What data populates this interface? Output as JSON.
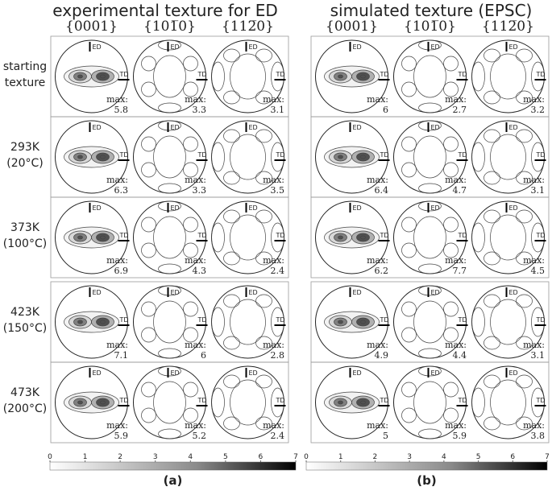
{
  "header": {
    "left_title": "experimental texture for ED",
    "right_title": "simulated texture (EPSC)"
  },
  "columns": [
    "{0001}",
    "{101̅0}",
    "{112̅0}"
  ],
  "rows": [
    [
      "starting",
      "texture"
    ],
    [
      "293K",
      "(20°C)"
    ],
    [
      "373K",
      "(100°C)"
    ],
    [
      "423K",
      "(150°C)"
    ],
    [
      "473K",
      "(200°C)"
    ]
  ],
  "markers": {
    "ed": "ED",
    "td": "TD",
    "max": "max:"
  },
  "experimental": [
    [
      5.8,
      3.3,
      3.1
    ],
    [
      6.3,
      3.3,
      3.5
    ],
    [
      6.9,
      4.3,
      2.4
    ],
    [
      7.1,
      6,
      2.8
    ],
    [
      5.9,
      5.2,
      2.4
    ]
  ],
  "simulated": [
    [
      6,
      2.7,
      3.2
    ],
    [
      6.4,
      4.7,
      3.1
    ],
    [
      6.2,
      7.7,
      4.5
    ],
    [
      4.9,
      4.4,
      3.1
    ],
    [
      5,
      5.9,
      3.8
    ]
  ],
  "colorbar": {
    "ticks": [
      0,
      1,
      2,
      3,
      4,
      5,
      6,
      7
    ]
  },
  "panel_labels": [
    "(a)",
    "(b)"
  ]
}
